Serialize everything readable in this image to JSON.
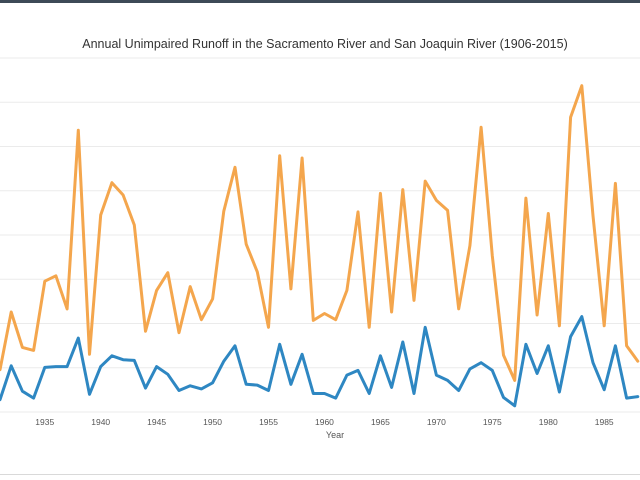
{
  "chart_data": {
    "type": "line",
    "title": "Annual Unimpaired Runoff in the Sacramento River and San Joaquin River (1906-2015)",
    "xlabel": "Year",
    "ylabel": "",
    "x_ticks": [
      "1935",
      "1940",
      "1945",
      "1950",
      "1955",
      "1960",
      "1965",
      "1970",
      "1975",
      "1980",
      "1985"
    ],
    "xlim": [
      1931,
      1988.2
    ],
    "ylim": [
      0,
      46
    ],
    "grid": true,
    "colors": {
      "top_series": "#f4a64d",
      "bottom_series": "#2e87c2"
    },
    "x": [
      1931,
      1932,
      1933,
      1934,
      1935,
      1936,
      1937,
      1938,
      1939,
      1940,
      1941,
      1942,
      1943,
      1944,
      1945,
      1946,
      1947,
      1948,
      1949,
      1950,
      1951,
      1952,
      1953,
      1954,
      1955,
      1956,
      1957,
      1958,
      1959,
      1960,
      1961,
      1962,
      1963,
      1964,
      1965,
      1966,
      1967,
      1968,
      1969,
      1970,
      1971,
      1972,
      1973,
      1974,
      1975,
      1976,
      1977,
      1978,
      1979,
      1980,
      1981,
      1982,
      1983,
      1984,
      1985,
      1986,
      1987,
      1988
    ],
    "series": [
      {
        "values": [
          5.5,
          13.0,
          8.4,
          8.0,
          17.0,
          17.7,
          13.4,
          36.6,
          7.5,
          25.6,
          29.8,
          28.2,
          24.3,
          10.5,
          15.8,
          18.1,
          10.3,
          16.3,
          12.0,
          14.7,
          26.1,
          31.8,
          21.8,
          18.2,
          11.0,
          33.3,
          16.0,
          33.0,
          11.9,
          12.8,
          12.0,
          15.8,
          26.0,
          11.0,
          28.4,
          13.0,
          28.9,
          14.5,
          30.0,
          27.5,
          26.2,
          13.4,
          21.6,
          37.0,
          20.3,
          7.4,
          4.1,
          27.8,
          12.6,
          25.8,
          11.2,
          38.3,
          42.4,
          25.5,
          11.2,
          29.7,
          8.6,
          6.6
        ],
        "color": "#f4a64d"
      },
      {
        "values": [
          1.6,
          6.0,
          2.7,
          1.8,
          5.8,
          5.9,
          5.9,
          9.6,
          2.3,
          5.9,
          7.3,
          6.8,
          6.7,
          3.1,
          5.9,
          4.9,
          2.8,
          3.4,
          3.0,
          3.8,
          6.6,
          8.6,
          3.6,
          3.5,
          2.8,
          8.8,
          3.6,
          7.5,
          2.4,
          2.4,
          1.8,
          4.8,
          5.4,
          2.4,
          7.3,
          3.2,
          9.1,
          2.4,
          11.0,
          4.8,
          4.1,
          2.8,
          5.6,
          6.4,
          5.4,
          1.9,
          0.8,
          8.8,
          5.0,
          8.6,
          2.6,
          9.8,
          12.4,
          6.4,
          2.9,
          8.6,
          1.8,
          2.0
        ],
        "color": "#2e87c2"
      }
    ]
  }
}
